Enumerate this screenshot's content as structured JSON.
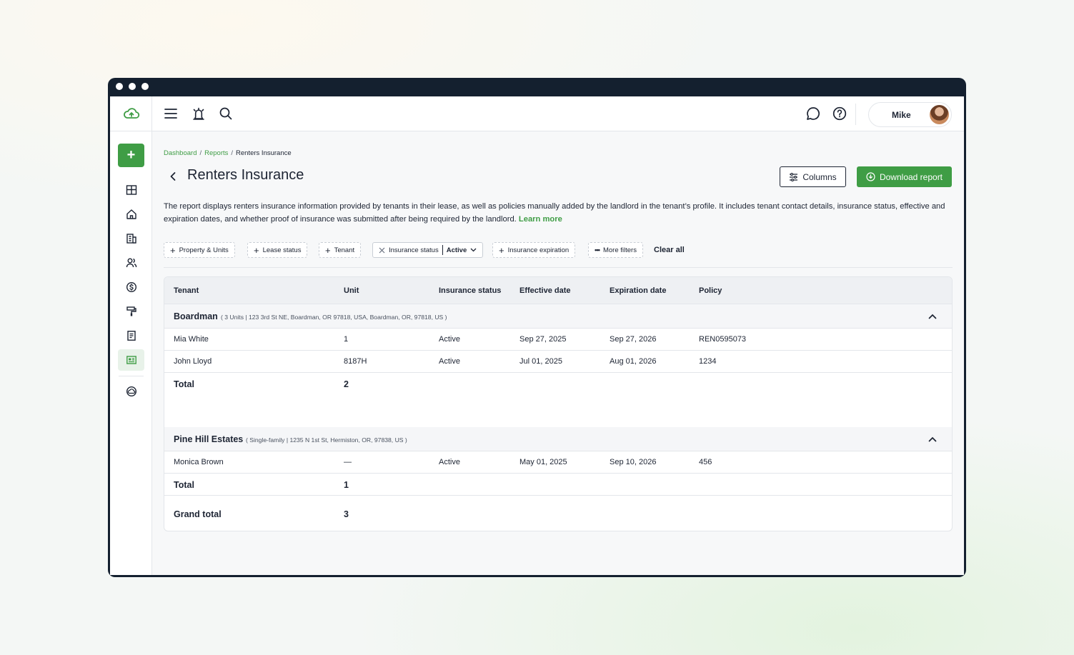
{
  "user": {
    "name": "Mike"
  },
  "breadcrumb": [
    "Dashboard",
    "Reports",
    "Renters Insurance"
  ],
  "page": {
    "title": "Renters Insurance",
    "columns_label": "Columns",
    "download_label": "Download report",
    "description": "The report displays renters insurance information provided by tenants in their lease, as well as policies manually added by the landlord in the tenant’s profile. It includes tenant contact details, insurance status, effective and expiration dates, and whether proof of insurance was submitted after being required by the landlord.",
    "learn_more": "Learn more"
  },
  "filters": {
    "property_units": "Property & Units",
    "lease_status": "Lease status",
    "tenant": "Tenant",
    "insurance_status_label": "Insurance status",
    "insurance_status_value": "Active",
    "insurance_expiration": "Insurance expiration",
    "more_filters": "More filters",
    "clear_all": "Clear all"
  },
  "table": {
    "headers": [
      "Tenant",
      "Unit",
      "Insurance status",
      "Effective date",
      "Expiration date",
      "Policy"
    ],
    "groups": [
      {
        "name": "Boardman",
        "meta": "( 3 Units | 123 3rd St NE, Boardman, OR 97818, USA, Boardman, OR, 97818, US )",
        "rows": [
          [
            "Mia White",
            "1",
            "Active",
            "Sep 27, 2025",
            "Sep 27, 2026",
            "REN0595073"
          ],
          [
            "John Lloyd",
            "8187H",
            "Active",
            "Jul 01, 2025",
            "Aug 01, 2026",
            "1234"
          ]
        ],
        "total_label": "Total",
        "total_value": "2"
      },
      {
        "name": "Pine Hill Estates",
        "meta": "( Single-family | 1235 N 1st St, Hermiston, OR, 97838, US )",
        "rows": [
          [
            "Monica Brown",
            "—",
            "Active",
            "May 01, 2025",
            "Sep 10, 2026",
            "456"
          ]
        ],
        "total_label": "Total",
        "total_value": "1"
      }
    ],
    "grand_total_label": "Grand total",
    "grand_total_value": "3"
  },
  "colors": {
    "accent": "#3f9d45",
    "dark": "#14202f"
  },
  "icons": [
    "cloud-logo-icon",
    "plus-icon",
    "dashboard-icon",
    "home-icon",
    "buildings-icon",
    "people-icon",
    "dollar-icon",
    "paint-roller-icon",
    "document-icon",
    "report-icon",
    "cloud-download-icon",
    "menu-icon",
    "alarm-icon",
    "search-icon",
    "chat-icon",
    "help-icon",
    "back-icon",
    "sliders-icon",
    "chevron-down-icon",
    "chevron-up-icon",
    "close-icon",
    "dots-icon"
  ]
}
